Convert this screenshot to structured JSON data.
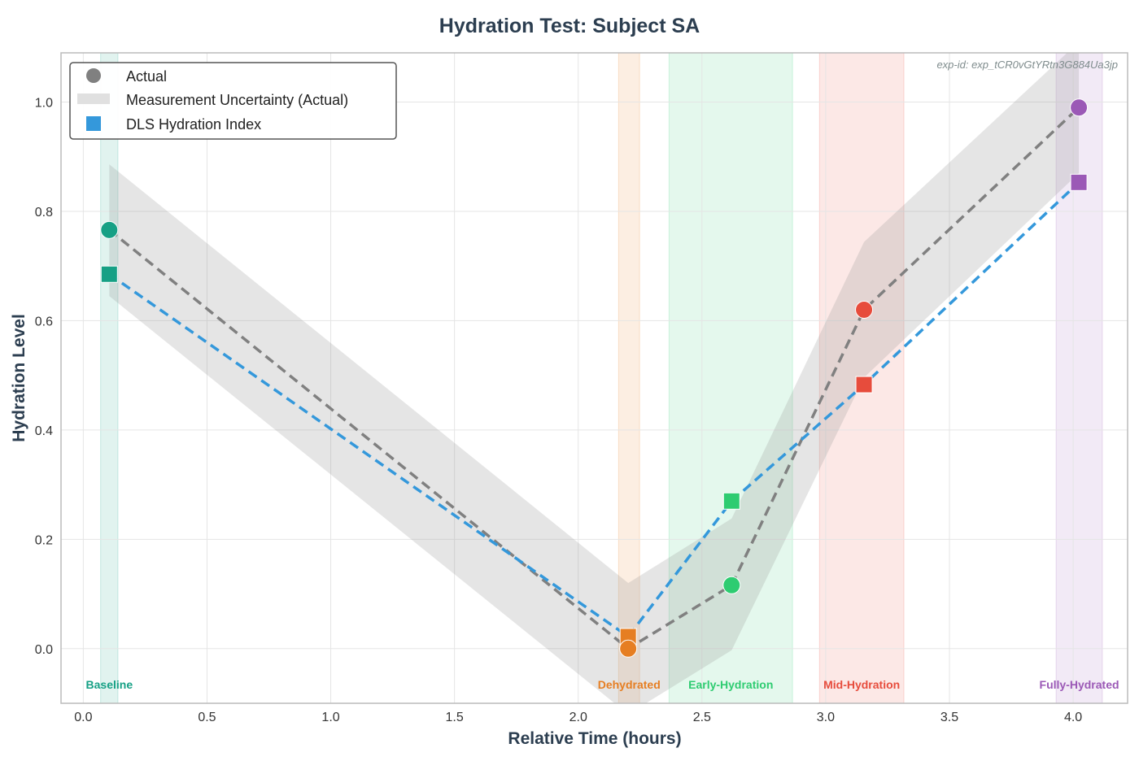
{
  "chart_data": {
    "type": "line",
    "title": "Hydration Test: Subject SA",
    "xlabel": "Relative Time (hours)",
    "ylabel": "Hydration Level",
    "xlim": [
      -0.09,
      4.22
    ],
    "ylim": [
      -0.1,
      1.09
    ],
    "xticks": [
      0.0,
      0.5,
      1.0,
      1.5,
      2.0,
      2.5,
      3.0,
      3.5,
      4.0
    ],
    "xtick_labels": [
      "0.0",
      "0.5",
      "1.0",
      "1.5",
      "2.0",
      "2.5",
      "3.0",
      "3.5",
      "4.0"
    ],
    "yticks": [
      0.0,
      0.2,
      0.4,
      0.6,
      0.8,
      1.0
    ],
    "ytick_labels": [
      "0.0",
      "0.2",
      "0.4",
      "0.6",
      "0.8",
      "1.0"
    ],
    "grid": true,
    "legend_position": "top-left",
    "annotation": "exp-id: exp_tCR0vGtYRtn3G884Ua3jp",
    "x": [
      0.105,
      2.202,
      2.62,
      3.155,
      4.023
    ],
    "point_colors": [
      "#16a085",
      "#e67e22",
      "#2ecc71",
      "#e74c3c",
      "#9b59b6"
    ],
    "series": [
      {
        "name": "Actual",
        "marker": "circle",
        "line_color": "#808080",
        "values": [
          0.766,
          0.0,
          0.116,
          0.62,
          0.99
        ]
      },
      {
        "name": "DLS Hydration Index",
        "marker": "square",
        "line_color": "#3498db",
        "values": [
          0.685,
          0.022,
          0.27,
          0.483,
          0.853
        ]
      }
    ],
    "uncertainty": {
      "name": "Measurement Uncertainty (Actual)",
      "upper": [
        0.886,
        0.12,
        0.238,
        0.744,
        1.11
      ],
      "lower": [
        0.645,
        -0.12,
        -0.003,
        0.496,
        0.87
      ]
    },
    "phases": [
      {
        "label": "Baseline",
        "start": 0.07,
        "end": 0.14,
        "color": "#16a085"
      },
      {
        "label": "Dehydrated",
        "start": 2.163,
        "end": 2.248,
        "color": "#e67e22"
      },
      {
        "label": "Early-Hydration",
        "start": 2.367,
        "end": 2.866,
        "color": "#2ecc71"
      },
      {
        "label": "Mid-Hydration",
        "start": 2.975,
        "end": 3.316,
        "color": "#e74c3c"
      },
      {
        "label": "Fully-Hydrated",
        "start": 3.931,
        "end": 4.118,
        "color": "#9b59b6"
      }
    ]
  }
}
